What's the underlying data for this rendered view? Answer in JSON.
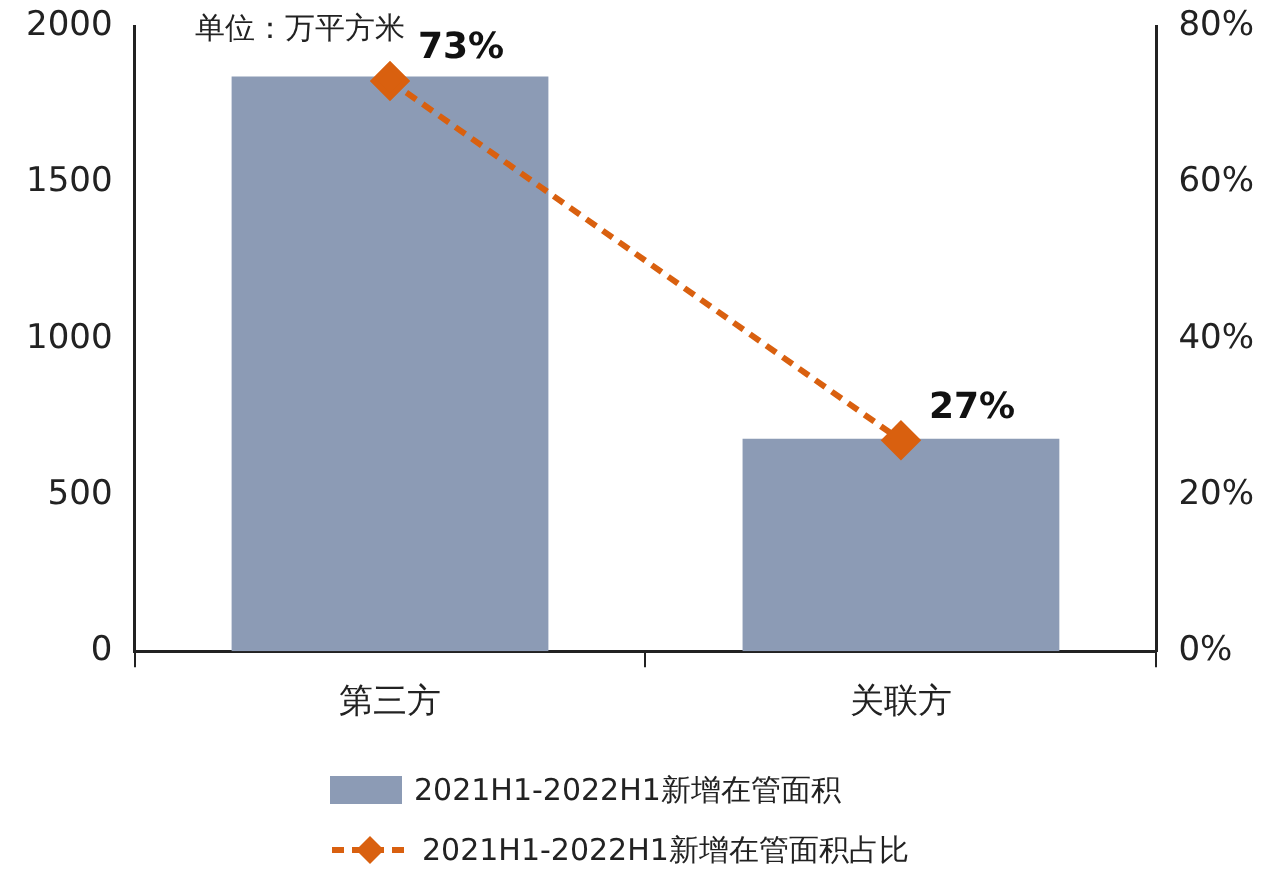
{
  "chart_data": {
    "type": "bar",
    "categories": [
      "第三方",
      "关联方"
    ],
    "series": [
      {
        "name": "2021H1-2022H1新增在管面积",
        "color": "#8c9bb5",
        "values": [
          1840,
          680
        ]
      },
      {
        "name": "2021H1-2022H1新增在管面积占比",
        "type": "line",
        "axis": "y2",
        "color": "#d9600f",
        "values": [
          73,
          27
        ],
        "value_labels": [
          "73%",
          "27%"
        ],
        "marker": "diamond",
        "line_style": "dashed"
      }
    ],
    "ylim": [
      0,
      2000
    ],
    "yticks": [
      0,
      500,
      1000,
      1500,
      2000
    ],
    "y2lim": [
      0,
      80
    ],
    "y2ticks": [
      {
        "value": 0,
        "label": "0%"
      },
      {
        "value": 20,
        "label": "20%"
      },
      {
        "value": 40,
        "label": "40%"
      },
      {
        "value": 60,
        "label": "60%"
      },
      {
        "value": 80,
        "label": "80%"
      }
    ],
    "annotations": [
      "单位：万平方米"
    ],
    "grid": false,
    "legend": "bottom"
  }
}
